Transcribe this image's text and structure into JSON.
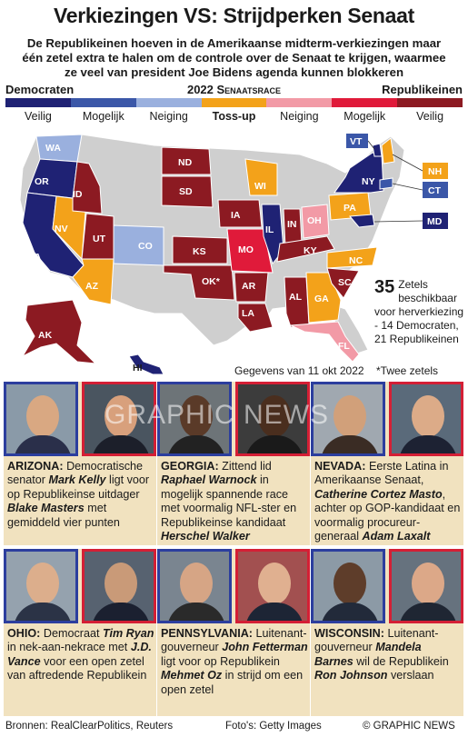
{
  "title": "Verkiezingen VS: Strijdperken Senaat",
  "subtitle": "De Republikeinen hoeven in de Amerikaanse midterm-verkiezingen maar één zetel extra te halen om de controle over de Senaat te krijgen, waarmee ze veel van president Joe Bidens agenda kunnen blokkeren",
  "legend": {
    "left": "Democraten",
    "center": "2022 Senaatsrace",
    "right": "Republikeinen",
    "categories": [
      "Veilig",
      "Mogelijk",
      "Neiging",
      "Toss-up",
      "Neiging",
      "Mogelijk",
      "Veilig"
    ],
    "colors": {
      "dem_safe": "#1f2274",
      "dem_likely": "#3b57a8",
      "dem_lean": "#9ab0de",
      "tossup": "#f3a21a",
      "rep_lean": "#f29aa6",
      "rep_likely": "#e01a3a",
      "rep_safe": "#8c1a22",
      "none": "#cfcfcf"
    }
  },
  "states": {
    "WA": "dem_lean",
    "OR": "dem_safe",
    "CA": "dem_safe",
    "NV": "tossup",
    "ID": "rep_safe",
    "UT": "rep_safe",
    "AZ": "tossup",
    "CO": "dem_lean",
    "ND": "rep_safe",
    "SD": "rep_safe",
    "KS": "rep_safe",
    "OK": "rep_safe",
    "IA": "rep_safe",
    "MO": "rep_likely",
    "AR": "rep_safe",
    "LA": "rep_safe",
    "WI": "tossup",
    "IL": "dem_safe",
    "IN": "rep_safe",
    "OH": "rep_lean",
    "KY": "rep_safe",
    "AL": "rep_safe",
    "GA": "tossup",
    "SC": "rep_safe",
    "NC": "tossup",
    "FL": "rep_lean",
    "PA": "tossup",
    "NY": "dem_safe",
    "VT": "dem_safe",
    "NH": "tossup",
    "CT": "dem_likely",
    "MD": "dem_safe",
    "AK": "rep_safe",
    "HI": "dem_safe"
  },
  "map_labels": [
    "WA",
    "OR",
    "CA",
    "NV",
    "ID",
    "UT",
    "AZ",
    "CO",
    "ND",
    "SD",
    "KS",
    "OK*",
    "IA",
    "MO",
    "AR",
    "LA",
    "WI",
    "IL",
    "IN",
    "OH",
    "KY",
    "AL",
    "GA",
    "SC",
    "NC",
    "FL",
    "PA",
    "NY",
    "VT",
    "NH",
    "CT",
    "MD",
    "AK",
    "HI"
  ],
  "seats": {
    "number": "35",
    "text": "Zetels beschikbaar voor herverkiezing - 14 Democraten, 21 Republikeinen"
  },
  "data_note": "Gegevens van 11 okt 2022",
  "footnote": "*Twee zetels",
  "watermark": "GRAPHIC NEWS",
  "races": [
    {
      "state": "ARIZONA:",
      "text_a": "Democratische senator ",
      "dem": "Mark Kelly",
      "text_b": " ligt voor op Republikeinse uitdager ",
      "rep": "Blake Masters",
      "text_c": " met gemiddeld vier punten"
    },
    {
      "state": "GEORGIA:",
      "text_a": "Zittend lid ",
      "dem": "Raphael Warnock",
      "text_b": " in mogelijk spannende race met voormalig NFL-ster en Republikeinse kandidaat ",
      "rep": "Herschel Walker",
      "text_c": ""
    },
    {
      "state": "NEVADA:",
      "text_a": "Eerste Latina in Amerikaanse Senaat, ",
      "dem": "Catherine Cortez Masto",
      "text_b": ", achter op GOP-kandidaat en voormalig procureur-generaal ",
      "rep": "Adam Laxalt",
      "text_c": ""
    },
    {
      "state": "OHIO:",
      "text_a": "Democraat ",
      "dem": "Tim Ryan",
      "text_b": " in nek-aan-nekrace met ",
      "rep": "J.D. Vance",
      "text_c": " voor een open zetel van aftredende Republikein"
    },
    {
      "state": "PENNSYLVANIA:",
      "text_a": "Luitenant-gouverneur ",
      "dem": "John Fetterman",
      "text_b": " ligt voor op Republikein ",
      "rep": "Mehmet Oz",
      "text_c": " in strijd om een open zetel"
    },
    {
      "state": "WISCONSIN:",
      "text_a": "Luitenant-gouverneur ",
      "dem": "Mandela Barnes",
      "text_b": " wil de Republikein ",
      "rep": "Ron Johnson",
      "text_c": " verslaan"
    }
  ],
  "footer": {
    "sources": "Bronnen: RealClearPolitics, Reuters",
    "photos": "Foto's: Getty Images",
    "credit": "© GRAPHIC NEWS"
  }
}
